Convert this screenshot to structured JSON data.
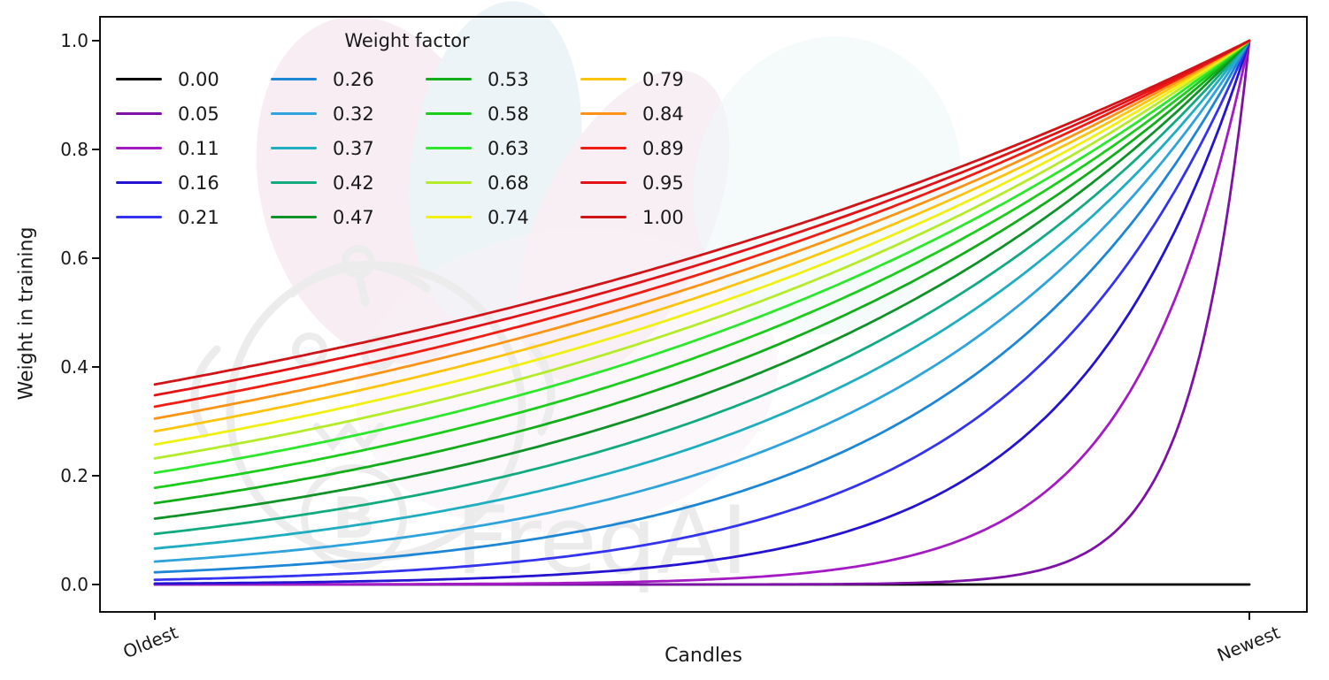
{
  "watermark": {
    "text": "FreqAI"
  },
  "chart_data": {
    "type": "line",
    "title": "",
    "xlabel": "Candles",
    "ylabel": "Weight in training",
    "x_tick_labels": [
      "Oldest",
      "Newest"
    ],
    "y_ticks": [
      "0.0",
      "0.2",
      "0.4",
      "0.6",
      "0.8",
      "1.0"
    ],
    "y_tick_values": [
      0,
      0.2,
      0.4,
      0.6,
      0.8,
      1.0
    ],
    "ylim": [
      -0.05,
      1.045
    ],
    "x_range": [
      0,
      1
    ],
    "grid": false,
    "legend": {
      "title": "Weight factor",
      "position": "upper left",
      "columns": 4,
      "rows": 5
    },
    "formula": "weight(x) = exp(-(1 - x) / factor) for x in [0,1] (Oldest to Newest); factor = 0 gives weight 0",
    "series": [
      {
        "label": "0.00",
        "factor": 0,
        "color": "#000000",
        "oldest_weight": 0,
        "newest_weight": 0
      },
      {
        "label": "0.05",
        "factor": 0.0526,
        "color": "#7E12A6",
        "oldest_weight": 0,
        "newest_weight": 1
      },
      {
        "label": "0.11",
        "factor": 0.1053,
        "color": "#A41BC4",
        "oldest_weight": 0.0001,
        "newest_weight": 1
      },
      {
        "label": "0.16",
        "factor": 0.1579,
        "color": "#2414D2",
        "oldest_weight": 0.0018,
        "newest_weight": 1
      },
      {
        "label": "0.21",
        "factor": 0.2105,
        "color": "#3434F0",
        "oldest_weight": 0.0087,
        "newest_weight": 1
      },
      {
        "label": "0.26",
        "factor": 0.2632,
        "color": "#1E87D5",
        "oldest_weight": 0.0224,
        "newest_weight": 1
      },
      {
        "label": "0.32",
        "factor": 0.3158,
        "color": "#2EA3DC",
        "oldest_weight": 0.0421,
        "newest_weight": 1
      },
      {
        "label": "0.37",
        "factor": 0.3684,
        "color": "#1FAEC0",
        "oldest_weight": 0.0662,
        "newest_weight": 1
      },
      {
        "label": "0.42",
        "factor": 0.4211,
        "color": "#12AB80",
        "oldest_weight": 0.093,
        "newest_weight": 1
      },
      {
        "label": "0.47",
        "factor": 0.4737,
        "color": "#0F9227",
        "oldest_weight": 0.1211,
        "newest_weight": 1
      },
      {
        "label": "0.53",
        "factor": 0.5263,
        "color": "#12AE19",
        "oldest_weight": 0.1496,
        "newest_weight": 1
      },
      {
        "label": "0.58",
        "factor": 0.5789,
        "color": "#1CCD1C",
        "oldest_weight": 0.1778,
        "newest_weight": 1
      },
      {
        "label": "0.63",
        "factor": 0.6316,
        "color": "#2CE82C",
        "oldest_weight": 0.2053,
        "newest_weight": 1
      },
      {
        "label": "0.68",
        "factor": 0.6842,
        "color": "#B4EC2A",
        "oldest_weight": 0.2319,
        "newest_weight": 1
      },
      {
        "label": "0.74",
        "factor": 0.7368,
        "color": "#F0F112",
        "oldest_weight": 0.2574,
        "newest_weight": 1
      },
      {
        "label": "0.79",
        "factor": 0.7895,
        "color": "#FDC40E",
        "oldest_weight": 0.2817,
        "newest_weight": 1
      },
      {
        "label": "0.84",
        "factor": 0.8421,
        "color": "#FD9315",
        "oldest_weight": 0.3049,
        "newest_weight": 1
      },
      {
        "label": "0.89",
        "factor": 0.8947,
        "color": "#F21D12",
        "oldest_weight": 0.3269,
        "newest_weight": 1
      },
      {
        "label": "0.95",
        "factor": 0.9474,
        "color": "#E31216",
        "oldest_weight": 0.3479,
        "newest_weight": 1
      },
      {
        "label": "1.00",
        "factor": 1.0,
        "color": "#D01418",
        "oldest_weight": 0.3679,
        "newest_weight": 1
      }
    ]
  }
}
